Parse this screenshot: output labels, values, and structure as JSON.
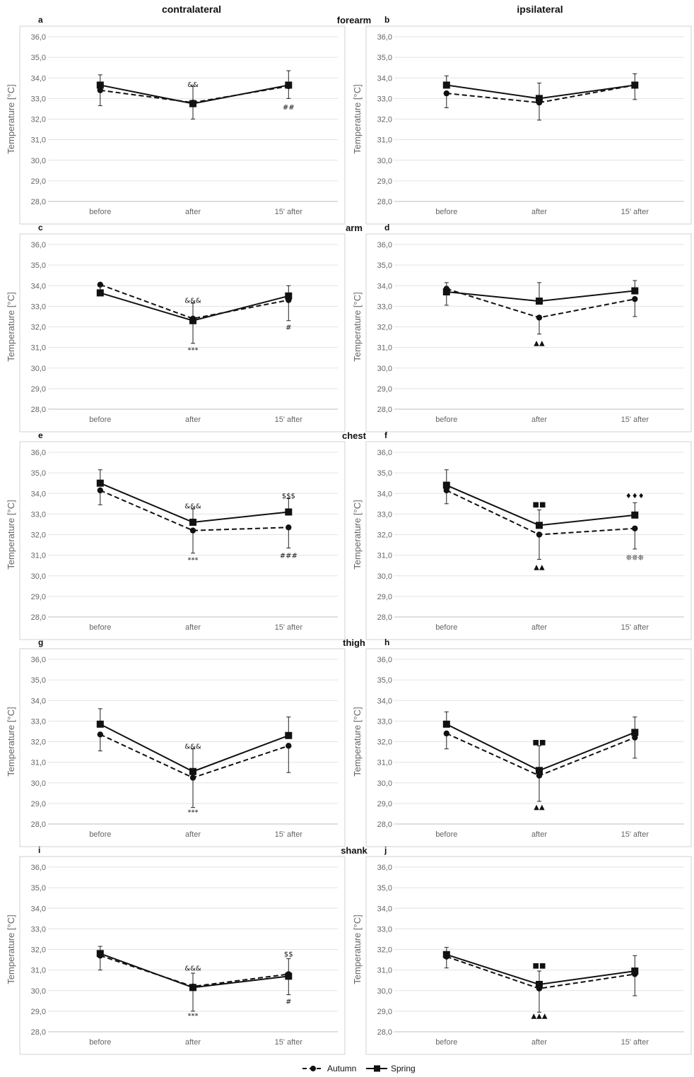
{
  "headers": {
    "left": "contralateral",
    "right": "ipsilateral"
  },
  "legend": {
    "autumn": "Autumn",
    "spring": "Spring"
  },
  "chart_data": [
    {
      "type": "line",
      "panel": "a",
      "region": "forearm",
      "side": "contralateral",
      "categories": [
        "before",
        "after",
        "15' after"
      ],
      "ylabel": "Temperature [°C]",
      "ylim": [
        28.0,
        36.0
      ],
      "yticks": [
        "28,0",
        "29,0",
        "30,0",
        "31,0",
        "32,0",
        "33,0",
        "34,0",
        "35,0",
        "36,0"
      ],
      "series": [
        {
          "name": "Autumn",
          "values": [
            33.4,
            32.8,
            33.6
          ],
          "error_low": [
            0.75,
            0.8,
            0.6
          ],
          "error_high": [
            0,
            0,
            0
          ]
        },
        {
          "name": "Spring",
          "values": [
            33.65,
            32.75,
            33.65
          ],
          "error_low": [
            0,
            0,
            0
          ],
          "error_high": [
            0.5,
            0.85,
            0.7
          ]
        }
      ],
      "annotations": [
        {
          "text": "&&",
          "x": 1,
          "y": 33.7
        },
        {
          "text": "##",
          "x": 2,
          "y": 32.6
        }
      ]
    },
    {
      "type": "line",
      "panel": "b",
      "region": "",
      "side": "ipsilateral",
      "categories": [
        "before",
        "after",
        "15' after"
      ],
      "ylabel": "Temperature [°C]",
      "ylim": [
        28.0,
        36.0
      ],
      "yticks": [
        "28,0",
        "29,0",
        "30,0",
        "31,0",
        "32,0",
        "33,0",
        "34,0",
        "35,0",
        "36,0"
      ],
      "series": [
        {
          "name": "Autumn",
          "values": [
            33.25,
            32.8,
            33.65
          ],
          "error_low": [
            0.7,
            0.85,
            0.7
          ],
          "error_high": [
            0,
            0,
            0
          ]
        },
        {
          "name": "Spring",
          "values": [
            33.65,
            33.0,
            33.65
          ],
          "error_low": [
            0,
            0,
            0
          ],
          "error_high": [
            0.45,
            0.75,
            0.55
          ]
        }
      ],
      "annotations": []
    },
    {
      "type": "line",
      "panel": "c",
      "region": "arm",
      "side": "contralateral",
      "categories": [
        "before",
        "after",
        "15' after"
      ],
      "ylabel": "Temperature [°C]",
      "ylim": [
        28.0,
        36.0
      ],
      "yticks": [
        "28,0",
        "29,0",
        "30,0",
        "31,0",
        "32,0",
        "33,0",
        "34,0",
        "35,0",
        "36,0"
      ],
      "series": [
        {
          "name": "Autumn",
          "values": [
            34.05,
            32.4,
            33.3
          ],
          "error_low": [
            0.3,
            1.2,
            1.0
          ],
          "error_high": [
            0,
            0,
            0
          ]
        },
        {
          "name": "Spring",
          "values": [
            33.65,
            32.3,
            33.5
          ],
          "error_low": [
            0,
            0,
            0
          ],
          "error_high": [
            0.3,
            0.85,
            0.5
          ]
        }
      ],
      "annotations": [
        {
          "text": "&&&",
          "x": 1,
          "y": 33.3
        },
        {
          "text": "***",
          "x": 1,
          "y": 30.9
        },
        {
          "text": "#",
          "x": 2,
          "y": 32.0
        }
      ]
    },
    {
      "type": "line",
      "panel": "d",
      "region": "",
      "side": "ipsilateral",
      "categories": [
        "before",
        "after",
        "15' after"
      ],
      "ylabel": "Temperature [°C]",
      "ylim": [
        28.0,
        36.0
      ],
      "yticks": [
        "28,0",
        "29,0",
        "30,0",
        "31,0",
        "32,0",
        "33,0",
        "34,0",
        "35,0",
        "36,0"
      ],
      "series": [
        {
          "name": "Autumn",
          "values": [
            33.85,
            32.45,
            33.35
          ],
          "error_low": [
            0.8,
            0.8,
            0.85
          ],
          "error_high": [
            0,
            0,
            0
          ]
        },
        {
          "name": "Spring",
          "values": [
            33.7,
            33.25,
            33.75
          ],
          "error_low": [
            0,
            0,
            0
          ],
          "error_high": [
            0.45,
            0.9,
            0.5
          ]
        }
      ],
      "annotations": [
        {
          "text": "▲▲",
          "x": 1,
          "y": 31.25
        }
      ]
    },
    {
      "type": "line",
      "panel": "e",
      "region": "chest",
      "side": "contralateral",
      "categories": [
        "before",
        "after",
        "15' after"
      ],
      "ylabel": "Temperature [°C]",
      "ylim": [
        28.0,
        36.0
      ],
      "yticks": [
        "28,0",
        "29,0",
        "30,0",
        "31,0",
        "32,0",
        "33,0",
        "34,0",
        "35,0",
        "36,0"
      ],
      "series": [
        {
          "name": "Autumn",
          "values": [
            34.15,
            32.2,
            32.35
          ],
          "error_low": [
            0.7,
            1.1,
            1.0
          ],
          "error_high": [
            0,
            0,
            0
          ]
        },
        {
          "name": "Spring",
          "values": [
            34.5,
            32.6,
            33.1
          ],
          "error_low": [
            0,
            0,
            0
          ],
          "error_high": [
            0.65,
            0.65,
            0.65
          ]
        }
      ],
      "annotations": [
        {
          "text": "&&&",
          "x": 1,
          "y": 33.4
        },
        {
          "text": "***",
          "x": 1,
          "y": 30.8
        },
        {
          "text": "$$$",
          "x": 2,
          "y": 33.9
        },
        {
          "text": "###",
          "x": 2,
          "y": 31.0
        }
      ]
    },
    {
      "type": "line",
      "panel": "f",
      "region": "",
      "side": "ipsilateral",
      "categories": [
        "before",
        "after",
        "15' after"
      ],
      "ylabel": "Temperature [°C]",
      "ylim": [
        28.0,
        36.0
      ],
      "yticks": [
        "28,0",
        "29,0",
        "30,0",
        "31,0",
        "32,0",
        "33,0",
        "34,0",
        "35,0",
        "36,0"
      ],
      "series": [
        {
          "name": "Autumn",
          "values": [
            34.15,
            32.0,
            32.3
          ],
          "error_low": [
            0.65,
            1.2,
            1.0
          ],
          "error_high": [
            0,
            0,
            0
          ]
        },
        {
          "name": "Spring",
          "values": [
            34.4,
            32.45,
            32.95
          ],
          "error_low": [
            0,
            0,
            0
          ],
          "error_high": [
            0.75,
            0.75,
            0.6
          ]
        }
      ],
      "annotations": [
        {
          "text": "■■",
          "x": 1,
          "y": 33.5
        },
        {
          "text": "▲▲",
          "x": 1,
          "y": 30.45
        },
        {
          "text": "♦♦♦",
          "x": 2,
          "y": 33.9
        },
        {
          "text": "❊❊❊",
          "x": 2,
          "y": 30.9
        }
      ]
    },
    {
      "type": "line",
      "panel": "g",
      "region": "thigh",
      "side": "contralateral",
      "categories": [
        "before",
        "after",
        "15' after"
      ],
      "ylabel": "Temperature [°C]",
      "ylim": [
        28.0,
        36.0
      ],
      "yticks": [
        "28,0",
        "29,0",
        "30,0",
        "31,0",
        "32,0",
        "33,0",
        "34,0",
        "35,0",
        "36,0"
      ],
      "series": [
        {
          "name": "Autumn",
          "values": [
            32.35,
            30.25,
            31.8
          ],
          "error_low": [
            0.8,
            1.45,
            1.3
          ],
          "error_high": [
            0,
            0,
            0
          ]
        },
        {
          "name": "Spring",
          "values": [
            32.85,
            30.55,
            32.3
          ],
          "error_low": [
            0,
            0,
            0
          ],
          "error_high": [
            0.75,
            1.1,
            0.9
          ]
        }
      ],
      "annotations": [
        {
          "text": "&&&",
          "x": 1,
          "y": 31.8
        },
        {
          "text": "***",
          "x": 1,
          "y": 28.6
        }
      ]
    },
    {
      "type": "line",
      "panel": "h",
      "region": "",
      "side": "ipsilateral",
      "categories": [
        "before",
        "after",
        "15' after"
      ],
      "ylabel": "Temperature [°C]",
      "ylim": [
        28.0,
        36.0
      ],
      "yticks": [
        "28,0",
        "29,0",
        "30,0",
        "31,0",
        "32,0",
        "33,0",
        "34,0",
        "35,0",
        "36,0"
      ],
      "series": [
        {
          "name": "Autumn",
          "values": [
            32.4,
            30.35,
            32.2
          ],
          "error_low": [
            0.75,
            1.25,
            1.0
          ],
          "error_high": [
            0,
            0,
            0
          ]
        },
        {
          "name": "Spring",
          "values": [
            32.85,
            30.6,
            32.45
          ],
          "error_low": [
            0,
            0,
            0
          ],
          "error_high": [
            0.6,
            1.2,
            0.75
          ]
        }
      ],
      "annotations": [
        {
          "text": "■■",
          "x": 1,
          "y": 32.0
        },
        {
          "text": "▲▲",
          "x": 1,
          "y": 28.85
        }
      ]
    },
    {
      "type": "line",
      "panel": "i",
      "region": "shank",
      "side": "contralateral",
      "categories": [
        "before",
        "after",
        "15' after"
      ],
      "ylabel": "Temperature [°C]",
      "ylim": [
        28.0,
        36.0
      ],
      "yticks": [
        "28,0",
        "29,0",
        "30,0",
        "31,0",
        "32,0",
        "33,0",
        "34,0",
        "35,0",
        "36,0"
      ],
      "series": [
        {
          "name": "Autumn",
          "values": [
            31.7,
            30.2,
            30.8
          ],
          "error_low": [
            0.7,
            1.2,
            1.0
          ],
          "error_high": [
            0,
            0,
            0
          ]
        },
        {
          "name": "Spring",
          "values": [
            31.8,
            30.15,
            30.7
          ],
          "error_low": [
            0,
            0,
            0
          ],
          "error_high": [
            0.35,
            0.7,
            0.85
          ]
        }
      ],
      "annotations": [
        {
          "text": "&&&",
          "x": 1,
          "y": 31.1
        },
        {
          "text": "***",
          "x": 1,
          "y": 28.8
        },
        {
          "text": "$$",
          "x": 2,
          "y": 31.8
        },
        {
          "text": "#",
          "x": 2,
          "y": 29.5
        }
      ]
    },
    {
      "type": "line",
      "panel": "j",
      "region": "",
      "side": "ipsilateral",
      "categories": [
        "before",
        "after",
        "15' after"
      ],
      "ylabel": "Temperature [°C]",
      "ylim": [
        28.0,
        36.0
      ],
      "yticks": [
        "28,0",
        "29,0",
        "30,0",
        "31,0",
        "32,0",
        "33,0",
        "34,0",
        "35,0",
        "36,0"
      ],
      "series": [
        {
          "name": "Autumn",
          "values": [
            31.65,
            30.1,
            30.8
          ],
          "error_low": [
            0.55,
            1.15,
            1.05
          ],
          "error_high": [
            0,
            0,
            0
          ]
        },
        {
          "name": "Spring",
          "values": [
            31.75,
            30.3,
            30.95
          ],
          "error_low": [
            0,
            0,
            0
          ],
          "error_high": [
            0.35,
            0.65,
            0.75
          ]
        }
      ],
      "annotations": [
        {
          "text": "■■",
          "x": 1,
          "y": 31.25
        },
        {
          "text": "▲▲▲",
          "x": 1,
          "y": 28.8
        }
      ]
    }
  ]
}
